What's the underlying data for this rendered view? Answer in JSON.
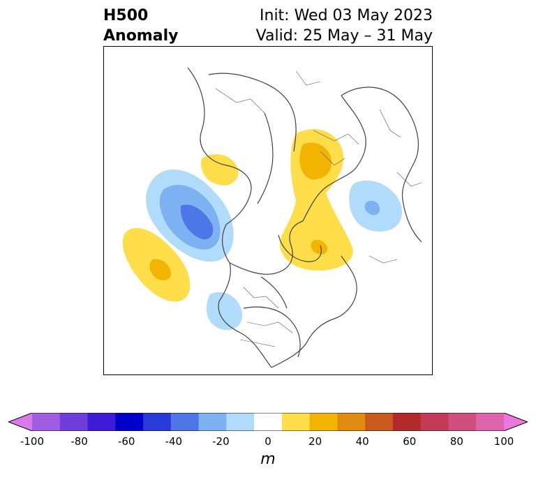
{
  "title": {
    "left_line1": "H500",
    "left_line2": "Anomaly",
    "right_line1": "Init: Wed 03 May 2023",
    "right_line2": "Valid: 25 May – 31 May"
  },
  "colorbar": {
    "unit": "m",
    "min": -100,
    "max": 100,
    "extend": "both",
    "ticks": [
      "-100",
      "-80",
      "-60",
      "-40",
      "-20",
      "0",
      "20",
      "40",
      "60",
      "80",
      "100"
    ],
    "colors": {
      "under": "#d87ae8",
      "bins": [
        "#a05ce2",
        "#6f3fdb",
        "#3e1bd6",
        "#0000cc",
        "#2a3ad9",
        "#4f76e6",
        "#7db2f2",
        "#b0dbfa",
        "#ffffff",
        "#ffde4a",
        "#f2b400",
        "#e18a10",
        "#c95a1e",
        "#b42a2a",
        "#c23a55",
        "#cf4f7e",
        "#dc64ad"
      ],
      "over": "#ea78dd"
    }
  },
  "anomalies": [
    {
      "label": "blue",
      "color": "#b0dbfa"
    },
    {
      "label": "blue-mid",
      "color": "#7db2f2"
    },
    {
      "label": "blue-dark",
      "color": "#4f76e6"
    },
    {
      "label": "yellow",
      "color": "#ffde4a"
    },
    {
      "label": "orange",
      "color": "#f2b400"
    }
  ]
}
